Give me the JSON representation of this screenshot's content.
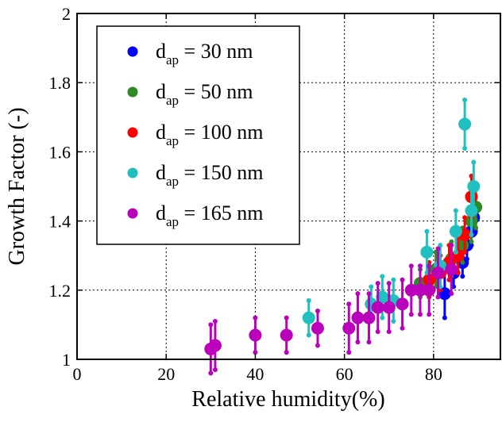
{
  "chart_data": {
    "type": "scatter",
    "xlabel": "Relative humidity(%)",
    "ylabel": "Growth Factor (-)",
    "xlim": [
      0,
      95
    ],
    "ylim": [
      1,
      2
    ],
    "xticks": [
      0,
      20,
      40,
      60,
      80
    ],
    "yticks": [
      1,
      1.2,
      1.4,
      1.6,
      1.8,
      2
    ],
    "xtick_labels": [
      "0",
      "20",
      "40",
      "60",
      "80"
    ],
    "ytick_labels": [
      "1",
      "1.2",
      "1.4",
      "1.6",
      "1.8",
      "2"
    ],
    "grid": true,
    "legend_position": "top-left",
    "series": [
      {
        "name": "d",
        "subscript": "ap",
        "suffix": " = 30 nm",
        "color": "#0000ff",
        "points": [
          {
            "x": 82.5,
            "y": 1.19,
            "err": 0.07
          },
          {
            "x": 84.5,
            "y": 1.25,
            "err": 0.04
          },
          {
            "x": 86.5,
            "y": 1.28,
            "err": 0.04
          },
          {
            "x": 87.5,
            "y": 1.33,
            "err": 0.04
          },
          {
            "x": 88.5,
            "y": 1.37,
            "err": 0.04
          },
          {
            "x": 89.0,
            "y": 1.41,
            "err": 0.04
          }
        ]
      },
      {
        "name": "d",
        "subscript": "ap",
        "suffix": " = 50 nm",
        "color": "#2e8b22",
        "points": [
          {
            "x": 77.0,
            "y": 1.22,
            "err": 0.04
          },
          {
            "x": 80.5,
            "y": 1.26,
            "err": 0.05
          },
          {
            "x": 84.0,
            "y": 1.29,
            "err": 0.05
          },
          {
            "x": 86.5,
            "y": 1.33,
            "err": 0.05
          },
          {
            "x": 88.5,
            "y": 1.4,
            "err": 0.06
          },
          {
            "x": 89.5,
            "y": 1.44,
            "err": 0.06
          }
        ]
      },
      {
        "name": "d",
        "subscript": "ap",
        "suffix": " = 100 nm",
        "color": "#ff0000",
        "points": [
          {
            "x": 79.0,
            "y": 1.23,
            "err": 0.05
          },
          {
            "x": 81.5,
            "y": 1.25,
            "err": 0.05
          },
          {
            "x": 83.5,
            "y": 1.28,
            "err": 0.05
          },
          {
            "x": 85.5,
            "y": 1.3,
            "err": 0.05
          },
          {
            "x": 87.0,
            "y": 1.36,
            "err": 0.05
          },
          {
            "x": 88.5,
            "y": 1.47,
            "err": 0.06
          }
        ]
      },
      {
        "name": "d",
        "subscript": "ap",
        "suffix": " = 150 nm",
        "color": "#20c0c0",
        "points": [
          {
            "x": 52.0,
            "y": 1.12,
            "err": 0.05
          },
          {
            "x": 66.0,
            "y": 1.16,
            "err": 0.05
          },
          {
            "x": 68.5,
            "y": 1.18,
            "err": 0.06
          },
          {
            "x": 71.0,
            "y": 1.17,
            "err": 0.06
          },
          {
            "x": 78.5,
            "y": 1.31,
            "err": 0.06
          },
          {
            "x": 81.5,
            "y": 1.27,
            "err": 0.06
          },
          {
            "x": 85.0,
            "y": 1.37,
            "err": 0.06
          },
          {
            "x": 87.0,
            "y": 1.68,
            "err": 0.07
          },
          {
            "x": 88.5,
            "y": 1.43,
            "err": 0.07
          },
          {
            "x": 89.0,
            "y": 1.5,
            "err": 0.07
          }
        ]
      },
      {
        "name": "d",
        "subscript": "ap",
        "suffix": " = 165 nm",
        "color": "#bb00bb",
        "points": [
          {
            "x": 30.0,
            "y": 1.03,
            "err": 0.07
          },
          {
            "x": 31.0,
            "y": 1.04,
            "err": 0.07
          },
          {
            "x": 40.0,
            "y": 1.07,
            "err": 0.05
          },
          {
            "x": 47.0,
            "y": 1.07,
            "err": 0.05
          },
          {
            "x": 54.0,
            "y": 1.09,
            "err": 0.05
          },
          {
            "x": 61.0,
            "y": 1.09,
            "err": 0.07
          },
          {
            "x": 63.0,
            "y": 1.12,
            "err": 0.07
          },
          {
            "x": 65.5,
            "y": 1.12,
            "err": 0.07
          },
          {
            "x": 67.5,
            "y": 1.15,
            "err": 0.07
          },
          {
            "x": 70.0,
            "y": 1.15,
            "err": 0.07
          },
          {
            "x": 73.0,
            "y": 1.16,
            "err": 0.07
          },
          {
            "x": 75.0,
            "y": 1.2,
            "err": 0.07
          },
          {
            "x": 77.0,
            "y": 1.2,
            "err": 0.07
          },
          {
            "x": 79.0,
            "y": 1.2,
            "err": 0.07
          },
          {
            "x": 81.0,
            "y": 1.25,
            "err": 0.07
          },
          {
            "x": 84.0,
            "y": 1.26,
            "err": 0.07
          }
        ]
      }
    ]
  }
}
